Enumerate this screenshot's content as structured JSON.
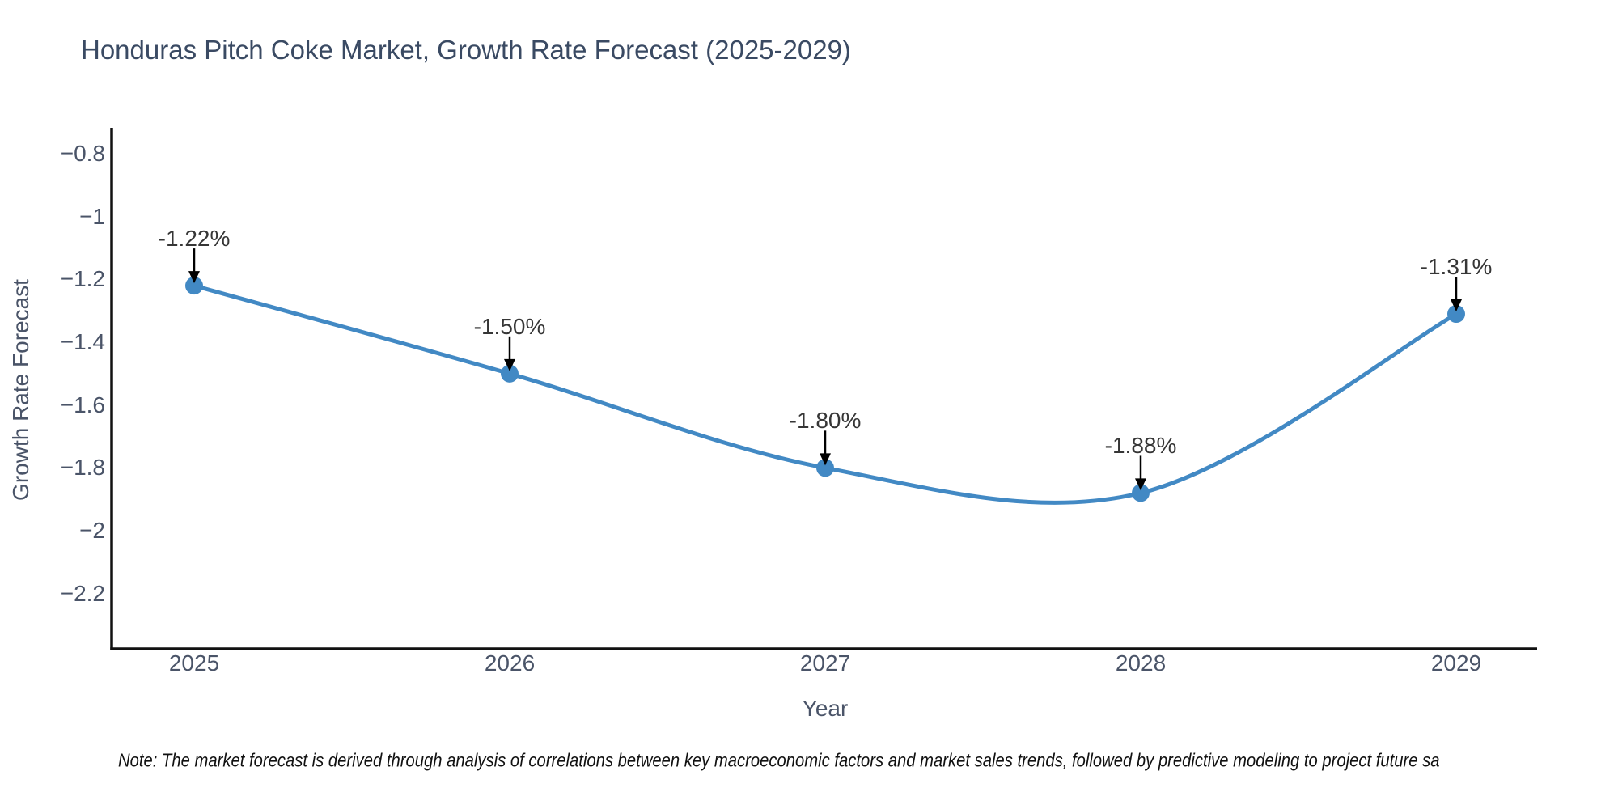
{
  "title": "Honduras Pitch Coke Market, Growth Rate Forecast (2025-2029)",
  "note": "Note: The market forecast is derived through analysis of correlations between key macroeconomic factors and market sales trends, followed by predictive modeling to project future sa",
  "chart_data": {
    "type": "line",
    "title": "Honduras Pitch Coke Market, Growth Rate Forecast (2025-2029)",
    "xlabel": "Year",
    "ylabel": "Growth Rate Forecast",
    "x": [
      2025,
      2026,
      2027,
      2028,
      2029
    ],
    "values": [
      -1.22,
      -1.5,
      -1.8,
      -1.88,
      -1.31
    ],
    "series": [
      {
        "name": "Growth Rate Forecast",
        "values": [
          -1.22,
          -1.5,
          -1.8,
          -1.88,
          -1.31
        ]
      }
    ],
    "point_labels": [
      "-1.22%",
      "-1.50%",
      "-1.80%",
      "-1.88%",
      "-1.31%"
    ],
    "x_tick_labels": [
      "2025",
      "2026",
      "2027",
      "2028",
      "2029"
    ],
    "y_tick_values": [
      -0.8,
      -1,
      -1.2,
      -1.4,
      -1.6,
      -1.8,
      -2,
      -2.2
    ],
    "y_tick_labels": [
      "−0.8",
      "−1",
      "−1.2",
      "−1.4",
      "−1.6",
      "−1.8",
      "−2",
      "−2.2"
    ],
    "ylim": [
      -2.38,
      -0.72
    ],
    "xlim": [
      2024.74,
      2029.26
    ],
    "line_shape": "spline",
    "grid": false,
    "legend": "none",
    "annotation_arrows": true,
    "colors": {
      "line": "#4289c4",
      "marker": "#4289c4",
      "axis": "#111111",
      "arrow": "#000000",
      "title_text": "#3a4a63",
      "tick_text": "#4a5468",
      "annotation_text": "#363636",
      "background": "#ffffff"
    }
  }
}
